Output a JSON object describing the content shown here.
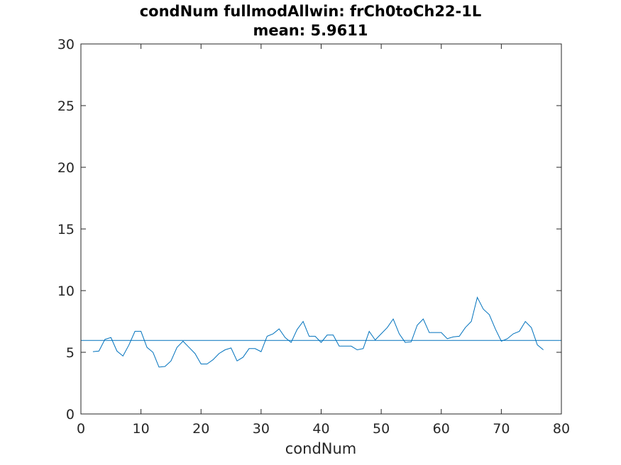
{
  "chart_data": {
    "type": "line",
    "title": "condNum fullmodAllwin: frCh0toCh22-1L",
    "subtitle": "mean: 5.9611",
    "xlabel": "condNum",
    "ylabel": "",
    "xlim": [
      0,
      80
    ],
    "ylim": [
      0,
      30
    ],
    "xticks": [
      "0",
      "10",
      "20",
      "30",
      "40",
      "50",
      "60",
      "70",
      "80"
    ],
    "yticks": [
      "0",
      "5",
      "10",
      "15",
      "20",
      "25",
      "30"
    ],
    "grid": false,
    "series": [
      {
        "color": "#0072bd",
        "x": [
          2,
          3,
          4,
          5,
          6,
          7,
          8,
          9,
          10,
          11,
          12,
          13,
          14,
          15,
          16,
          17,
          18,
          19,
          20,
          21,
          22,
          23,
          24,
          25,
          26,
          27,
          28,
          29,
          30,
          31,
          32,
          33,
          34,
          35,
          36,
          37,
          38,
          39,
          40,
          41,
          42,
          43,
          44,
          45,
          46,
          47,
          48,
          49,
          50,
          51,
          52,
          53,
          54,
          55,
          56,
          57,
          58,
          59,
          60,
          61,
          62,
          63,
          64,
          65,
          66,
          67,
          68,
          69,
          70,
          71,
          72,
          73,
          74,
          75,
          76,
          77
        ],
        "y": [
          5.05,
          5.1,
          6.05,
          6.2,
          5.1,
          4.7,
          5.6,
          6.7,
          6.7,
          5.4,
          5.0,
          3.8,
          3.85,
          4.3,
          5.4,
          5.9,
          5.4,
          4.9,
          4.05,
          4.05,
          4.4,
          4.9,
          5.2,
          5.35,
          4.3,
          4.6,
          5.3,
          5.3,
          5.05,
          6.3,
          6.5,
          6.9,
          6.2,
          5.8,
          6.85,
          7.5,
          6.3,
          6.3,
          5.8,
          6.4,
          6.4,
          5.5,
          5.5,
          5.5,
          5.2,
          5.3,
          6.7,
          6.0,
          6.5,
          7.0,
          7.7,
          6.5,
          5.8,
          5.85,
          7.2,
          7.7,
          6.6,
          6.6,
          6.6,
          6.1,
          6.25,
          6.3,
          7.0,
          7.5,
          9.45,
          8.5,
          8.05,
          6.9,
          5.9,
          6.1,
          6.5,
          6.7,
          7.5,
          7.0,
          5.6,
          5.2
        ]
      },
      {
        "color": "#0072bd",
        "x": [
          0,
          80
        ],
        "y": [
          5.9611,
          5.9611
        ]
      },
      {
        "color": "#d62728",
        "x": [
          0,
          80
        ],
        "y": [
          30,
          30
        ]
      }
    ]
  }
}
